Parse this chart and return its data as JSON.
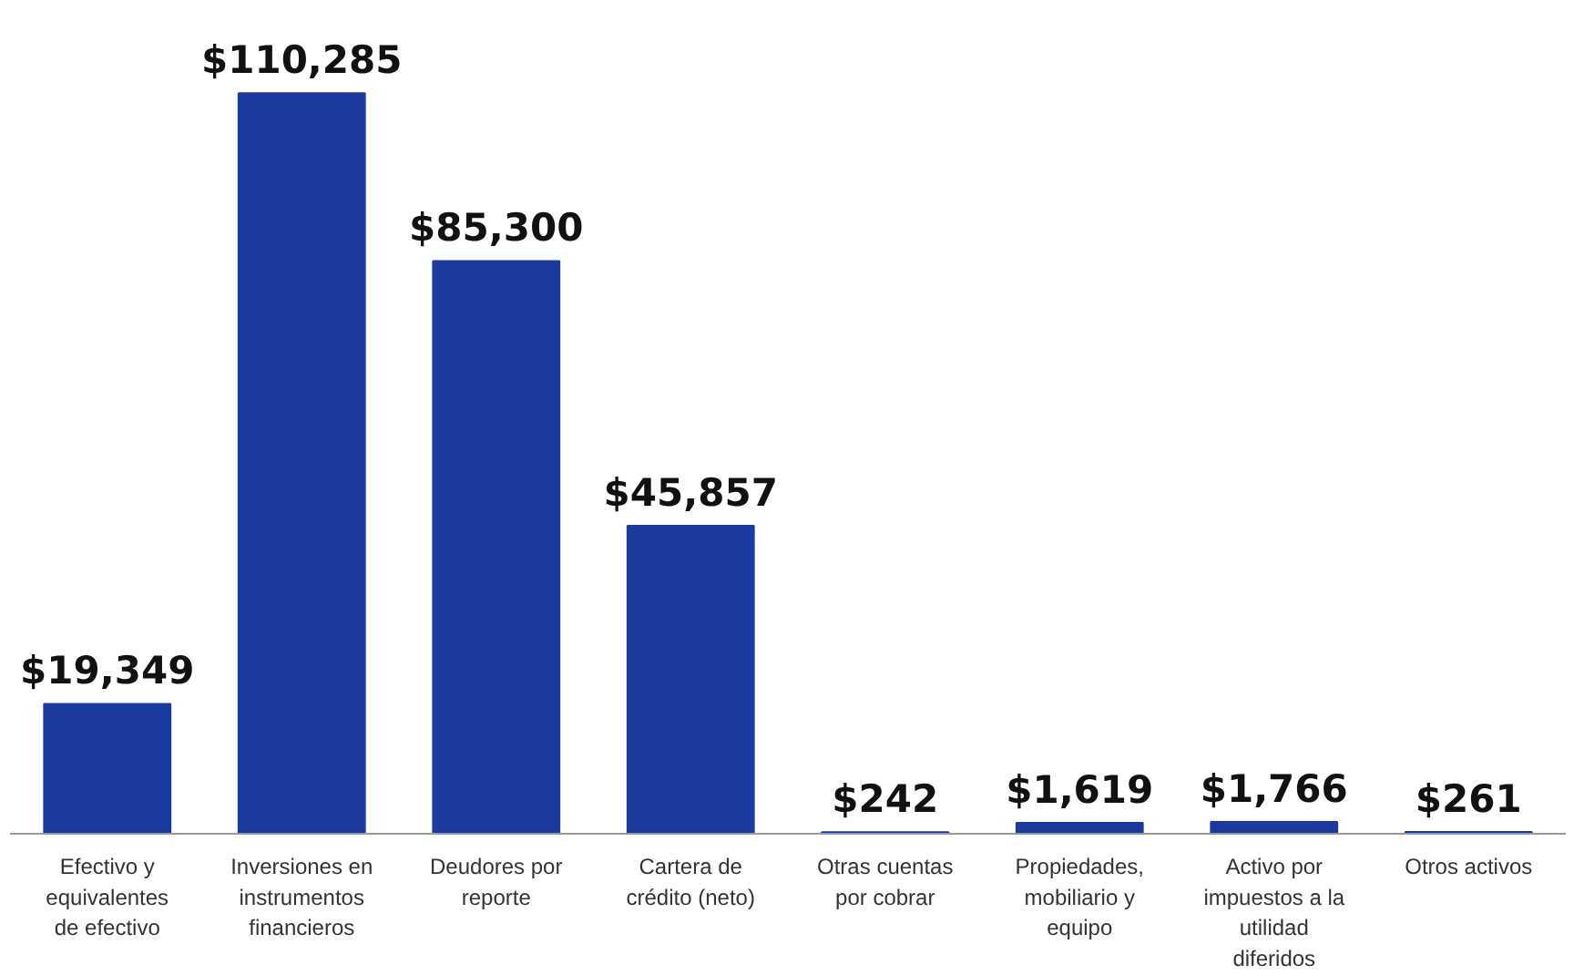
{
  "chart_data": {
    "type": "bar",
    "categories": [
      "Efectivo y equivalentes de efectivo",
      "Inversiones en instrumentos financieros",
      "Deudores por reporte",
      "Cartera de crédito (neto)",
      "Otras cuentas por cobrar",
      "Propiedades, mobiliario y equipo",
      "Activo por impuestos a la utilidad diferidos",
      "Otros activos"
    ],
    "values": [
      19349,
      110285,
      85300,
      45857,
      242,
      1619,
      1766,
      261
    ],
    "value_labels": [
      "$19,349",
      "$110,285",
      "$85,300",
      "$45,857",
      "$242",
      "$1,619",
      "$1,766",
      "$261"
    ],
    "color": "#1a3aa0",
    "grid": false
  }
}
